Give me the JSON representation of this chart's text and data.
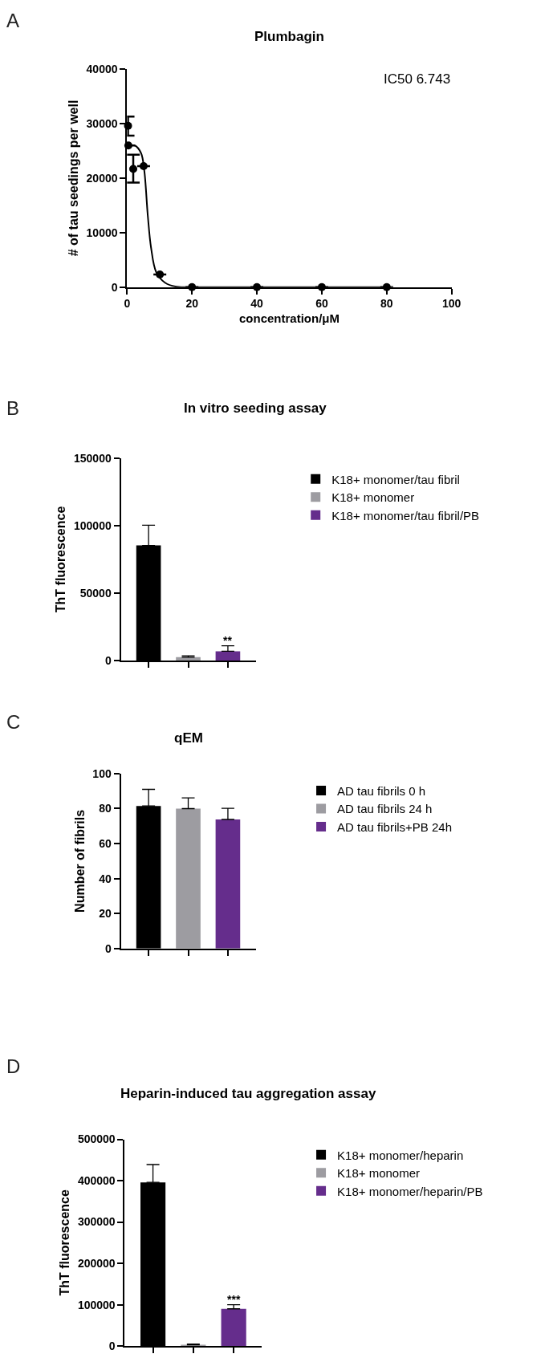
{
  "chart_data": [
    {
      "type": "scatter",
      "title": "Plumbagin",
      "xlabel": "concentration/μM",
      "ylabel": "# of tau seedings per well",
      "annotations": [
        "A",
        "IC50 6.743"
      ],
      "xlim": [
        0,
        100
      ],
      "xticks": [
        0,
        20,
        40,
        60,
        80,
        100
      ],
      "ylim": [
        0,
        40000
      ],
      "yticks": [
        0,
        10000,
        20000,
        30000,
        40000
      ],
      "legend": false,
      "marker": "circle",
      "series": [
        {
          "color": "#000000",
          "x": [
            0.3,
            0.4,
            1.9,
            5.1,
            10.1,
            20,
            40,
            60,
            80
          ],
          "values": [
            29600,
            26000,
            21700,
            22200,
            2300,
            0,
            0,
            0,
            0
          ],
          "errors": [
            [
              27800,
              31300
            ],
            null,
            [
              19200,
              24300
            ],
            null,
            null,
            null,
            null,
            null,
            null
          ]
        },
        {
          "type": "line",
          "marker": "none",
          "color": "#000000",
          "x": [
            0,
            1,
            2.4,
            4.3,
            5.3,
            6.4,
            7.4,
            9,
            11.7,
            14.9,
            20,
            40,
            60,
            80
          ],
          "values": [
            25900,
            26000,
            26000,
            24600,
            21400,
            13000,
            7200,
            2700,
            800,
            100,
            0,
            0,
            0,
            0
          ]
        }
      ]
    },
    {
      "type": "bar",
      "title": "In vitro seeding assay",
      "ylabel": "ThT fluorescence",
      "annotations": [
        "B",
        {
          "text": "**",
          "y": 11100
        }
      ],
      "categories": [
        null,
        null,
        null
      ],
      "ylim": [
        0,
        150000
      ],
      "yticks": [
        0,
        50000,
        100000,
        150000
      ],
      "tick_labels": "y",
      "legend": "right",
      "series": [
        {
          "name": "K18+ monomer/tau fibril",
          "color": "#000000",
          "values": [
            85300,
            null,
            null
          ],
          "errors": [
            [
              85300,
              100300
            ],
            null,
            null
          ]
        },
        {
          "name": "K18+ monomer",
          "color": "#9d9ca1",
          "values": [
            null,
            2600,
            null
          ],
          "errors": [
            null,
            [
              2600,
              3600
            ],
            null
          ]
        },
        {
          "name": "K18+ monomer/tau fibril/PB",
          "color": "#652d8c",
          "values": [
            null,
            null,
            7000
          ],
          "errors": [
            null,
            null,
            [
              7000,
              11100
            ]
          ]
        }
      ]
    },
    {
      "type": "bar",
      "title": "qEM",
      "ylabel": "Number of fibrils",
      "annotations": [
        "C"
      ],
      "categories": [
        null,
        null,
        null
      ],
      "ylim": [
        0,
        100
      ],
      "yticks": [
        0,
        20,
        40,
        60,
        80,
        100
      ],
      "tick_labels": "y",
      "legend": "right",
      "series": [
        {
          "name": "AD tau fibrils 0 h",
          "color": "#000000",
          "values": [
            81.5,
            null,
            null
          ],
          "errors": [
            [
              81.5,
              91
            ],
            null,
            null
          ]
        },
        {
          "name": "AD tau fibrils 24 h",
          "color": "#9d9ca1",
          "values": [
            null,
            80,
            null
          ],
          "errors": [
            null,
            [
              80,
              86.1
            ],
            null
          ]
        },
        {
          "name": "AD tau fibrils+PB 24h",
          "color": "#652d8c",
          "values": [
            null,
            null,
            73.8
          ],
          "errors": [
            null,
            null,
            [
              73.8,
              80.2
            ]
          ]
        }
      ]
    },
    {
      "type": "bar",
      "title": "Heparin-induced tau aggregation assay",
      "ylabel": "ThT fluorescence",
      "annotations": [
        "D",
        {
          "text": "***",
          "y": 100000
        }
      ],
      "categories": [
        null,
        null,
        null
      ],
      "ylim": [
        0,
        500000
      ],
      "yticks": [
        0,
        100000,
        200000,
        300000,
        400000,
        500000
      ],
      "tick_labels": "y",
      "legend": "right",
      "series": [
        {
          "name": "K18+ monomer/heparin",
          "color": "#000000",
          "values": [
            396000,
            null,
            null
          ],
          "errors": [
            [
              396000,
              439000
            ],
            null,
            null
          ]
        },
        {
          "name": "K18+ monomer",
          "color": "#9d9ca1",
          "values": [
            null,
            3000,
            null
          ],
          "errors": [
            null,
            [
              3000,
              5000
            ],
            null
          ]
        },
        {
          "name": "K18+ monomer/heparin/PB",
          "color": "#652d8c",
          "values": [
            null,
            null,
            90000
          ],
          "errors": [
            null,
            null,
            [
              90000,
              100000
            ]
          ]
        }
      ]
    }
  ]
}
